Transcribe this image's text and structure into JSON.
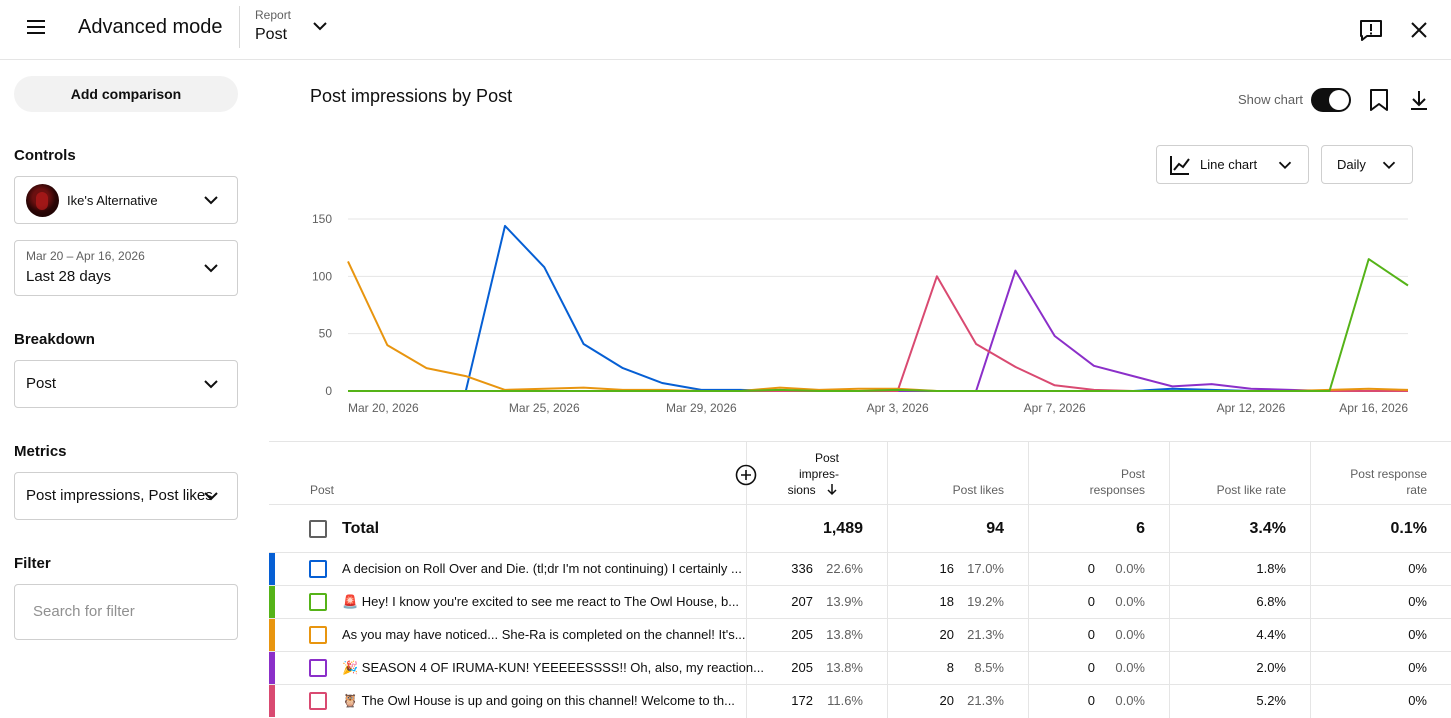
{
  "header": {
    "title": "Advanced mode",
    "report_caption": "Report",
    "report_value": "Post"
  },
  "sidebar": {
    "add_comparison": "Add comparison",
    "controls_label": "Controls",
    "channel": "Ike's Alternative",
    "date_range": "Mar 20 – Apr 16, 2026",
    "date_preset": "Last 28 days",
    "breakdown_label": "Breakdown",
    "breakdown_value": "Post",
    "metrics_label": "Metrics",
    "metrics_value": "Post impressions, Post likes",
    "filter_label": "Filter",
    "filter_placeholder": "Search for filter"
  },
  "chart_header": {
    "title": "Post impressions by Post",
    "show_chart_label": "Show chart",
    "show_chart_on": true,
    "chart_type": "Line chart",
    "interval": "Daily"
  },
  "chart_data": {
    "type": "line",
    "x": [
      "Mar 20, 2026",
      "Mar 21",
      "Mar 22",
      "Mar 23",
      "Mar 24",
      "Mar 25, 2026",
      "Mar 26",
      "Mar 27",
      "Mar 28",
      "Mar 29, 2026",
      "Mar 30",
      "Mar 31",
      "Apr 1",
      "Apr 2",
      "Apr 3, 2026",
      "Apr 4",
      "Apr 5",
      "Apr 6",
      "Apr 7, 2026",
      "Apr 8",
      "Apr 9",
      "Apr 10",
      "Apr 11",
      "Apr 12, 2026",
      "Apr 13",
      "Apr 14",
      "Apr 15",
      "Apr 16, 2026"
    ],
    "x_tick_labels": [
      "Mar 20, 2026",
      "Mar 25, 2026",
      "Mar 29, 2026",
      "Apr 3, 2026",
      "Apr 7, 2026",
      "Apr 12, 2026",
      "Apr 16, 2026"
    ],
    "y_ticks": [
      0,
      50,
      100,
      150
    ],
    "ylim": [
      0,
      150
    ],
    "grid": true,
    "series": [
      {
        "color": "#065fd4",
        "values": [
          0,
          0,
          0,
          0,
          144,
          108,
          41,
          20,
          7,
          1,
          1,
          0,
          0,
          0,
          0,
          0,
          0,
          0,
          0,
          0,
          0,
          2,
          1,
          0,
          0,
          0,
          0,
          0
        ]
      },
      {
        "color": "#8b2fc9",
        "values": [
          0,
          0,
          0,
          0,
          0,
          0,
          0,
          0,
          0,
          0,
          0,
          0,
          0,
          0,
          0,
          0,
          0,
          105,
          48,
          22,
          13,
          4,
          6,
          2,
          1,
          0,
          0,
          0
        ]
      },
      {
        "color": "#d94a71",
        "values": [
          0,
          0,
          0,
          0,
          0,
          0,
          0,
          0,
          0,
          0,
          0,
          0,
          0,
          0,
          0,
          100,
          41,
          21,
          5,
          1,
          0,
          0,
          0,
          0,
          0,
          0,
          0,
          0
        ]
      },
      {
        "color": "#e8950f",
        "values": [
          113,
          40,
          20,
          13,
          1,
          2,
          3,
          1,
          1,
          0,
          0,
          3,
          1,
          2,
          2,
          0,
          0,
          0,
          0,
          0,
          0,
          0,
          0,
          0,
          0,
          1,
          2,
          1
        ]
      },
      {
        "color": "#55b318",
        "values": [
          0,
          0,
          0,
          0,
          0,
          0,
          0,
          0,
          0,
          0,
          0,
          1,
          0,
          0,
          1,
          0,
          0,
          0,
          0,
          0,
          0,
          0,
          0,
          0,
          0,
          0,
          115,
          92
        ]
      }
    ]
  },
  "table": {
    "headers": {
      "post": "Post",
      "impressions": [
        "Post",
        "impres-",
        "sions"
      ],
      "likes": "Post likes",
      "responses": [
        "Post",
        "responses"
      ],
      "like_rate": "Post like rate",
      "response_rate": [
        "Post response",
        "rate"
      ]
    },
    "total": {
      "label": "Total",
      "impressions": "1,489",
      "likes": "94",
      "responses": "6",
      "like_rate": "3.4%",
      "response_rate": "0.1%"
    },
    "rows": [
      {
        "color": "#065fd4",
        "title": "A decision on Roll Over and Die. (tl;dr I'm not continuing) I certainly ...",
        "impressions": "336",
        "impressions_pct": "22.6%",
        "likes": "16",
        "likes_pct": "17.0%",
        "responses": "0",
        "responses_pct": "0.0%",
        "like_rate": "1.8%",
        "response_rate": "0%"
      },
      {
        "color": "#55b318",
        "title": "🚨 Hey! I know you're excited to see me react to The Owl House, b...",
        "impressions": "207",
        "impressions_pct": "13.9%",
        "likes": "18",
        "likes_pct": "19.2%",
        "responses": "0",
        "responses_pct": "0.0%",
        "like_rate": "6.8%",
        "response_rate": "0%"
      },
      {
        "color": "#e8950f",
        "title": "As you may have noticed... She-Ra is completed on the channel! It's...",
        "impressions": "205",
        "impressions_pct": "13.8%",
        "likes": "20",
        "likes_pct": "21.3%",
        "responses": "0",
        "responses_pct": "0.0%",
        "like_rate": "4.4%",
        "response_rate": "0%"
      },
      {
        "color": "#8b2fc9",
        "title": "🎉 SEASON 4 OF IRUMA-KUN! YEEEEESSSS!! Oh, also, my reaction...",
        "impressions": "205",
        "impressions_pct": "13.8%",
        "likes": "8",
        "likes_pct": "8.5%",
        "responses": "0",
        "responses_pct": "0.0%",
        "like_rate": "2.0%",
        "response_rate": "0%"
      },
      {
        "color": "#d94a71",
        "title": "🦉 The Owl House is up and going on this channel! Welcome to th...",
        "impressions": "172",
        "impressions_pct": "11.6%",
        "likes": "20",
        "likes_pct": "21.3%",
        "responses": "0",
        "responses_pct": "0.0%",
        "like_rate": "5.2%",
        "response_rate": "0%"
      }
    ]
  }
}
